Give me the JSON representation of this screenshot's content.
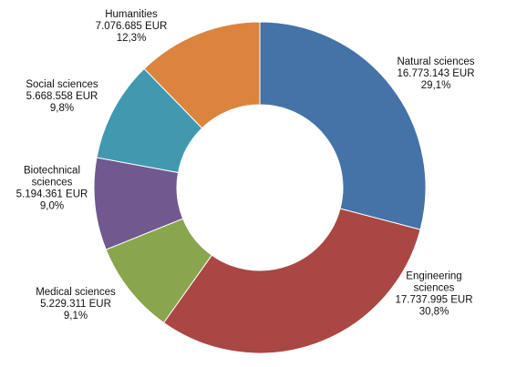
{
  "chart_data": {
    "type": "pie",
    "variant": "donut",
    "start_angle_deg": 0,
    "direction": "clockwise",
    "legend": "none",
    "slices": [
      {
        "name": "Natural sciences",
        "value_label": "16.773.143 EUR",
        "percent_label": "29,1%",
        "value": 16773143,
        "percent": 29.1,
        "color": "#4572A7"
      },
      {
        "name": "Engineering sciences",
        "value_label": "17.737.995 EUR",
        "percent_label": "30,8%",
        "value": 17737995,
        "percent": 30.8,
        "color": "#AA4643"
      },
      {
        "name": "Medical sciences",
        "value_label": "5.229.311 EUR",
        "percent_label": "9,1%",
        "value": 5229311,
        "percent": 9.1,
        "color": "#89A54E"
      },
      {
        "name": "Biotechnical sciences",
        "value_label": "5.194.361 EUR",
        "percent_label": "9,0%",
        "value": 5194361,
        "percent": 9.0,
        "color": "#71588F"
      },
      {
        "name": "Social sciences",
        "value_label": "5.668.558 EUR",
        "percent_label": "9,8%",
        "value": 5668558,
        "percent": 9.8,
        "color": "#4198AF"
      },
      {
        "name": "Humanities",
        "value_label": "7.076.685 EUR",
        "percent_label": "12,3%",
        "value": 7076685,
        "percent": 12.3,
        "color": "#DB843D"
      }
    ]
  }
}
